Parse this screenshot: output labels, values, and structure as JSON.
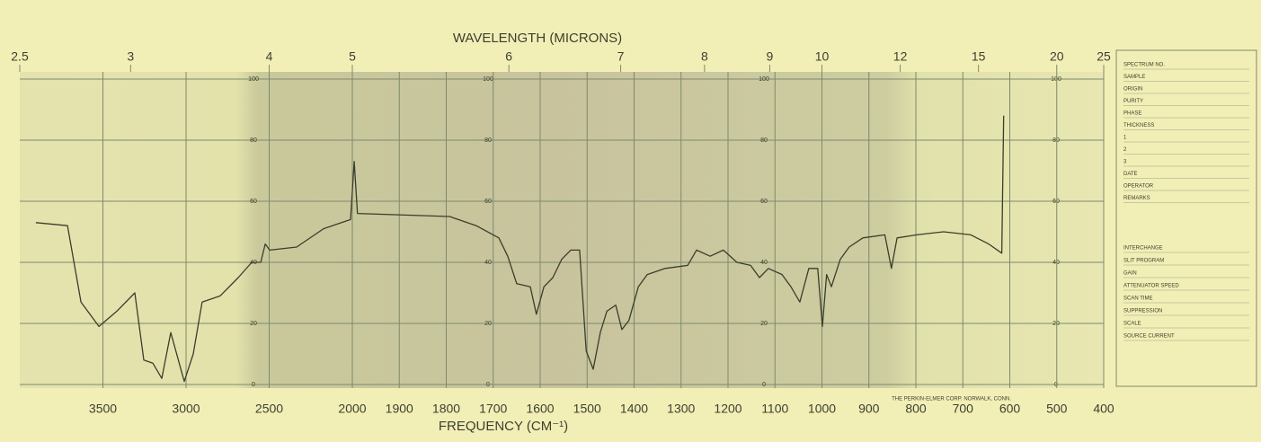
{
  "chart_data": {
    "type": "line",
    "x_top_label": "WAVELENGTH (MICRONS)",
    "x_label": "FREQUENCY (CM⁻¹)",
    "x": [
      3903,
      3713,
      3632,
      3524,
      3416,
      3308,
      3254,
      3200,
      3146,
      3092,
      3011,
      2957,
      2903,
      2795,
      2686,
      2605,
      2551,
      2524,
      2497,
      2335,
      2173,
      2011,
      1996,
      1989,
      1793,
      1736,
      1688,
      1669,
      1650,
      1621,
      1608,
      1592,
      1573,
      1554,
      1535,
      1516,
      1502,
      1487,
      1472,
      1458,
      1439,
      1426,
      1411,
      1391,
      1372,
      1334,
      1286,
      1267,
      1238,
      1210,
      1181,
      1152,
      1133,
      1114,
      1085,
      1066,
      1047,
      1028,
      1009,
      999,
      990,
      980,
      961,
      942,
      913,
      866,
      852,
      840,
      798,
      741,
      683,
      645,
      617,
      613
    ],
    "values": [
      53,
      52,
      27,
      19,
      24,
      30,
      8,
      7,
      2,
      17,
      1,
      10,
      27,
      29,
      35,
      40,
      40,
      46,
      44,
      45,
      51,
      54,
      73,
      56,
      55,
      52,
      48,
      42,
      33,
      32,
      23,
      32,
      35,
      41,
      44,
      44,
      11,
      5,
      17,
      24,
      26,
      18,
      21,
      32,
      36,
      38,
      39,
      44,
      42,
      44,
      40,
      39,
      35,
      38,
      36,
      32,
      27,
      38,
      38,
      19,
      36,
      32,
      41,
      45,
      48,
      49,
      38,
      48,
      49,
      50,
      49,
      46,
      43,
      88
    ],
    "color": "#3b3d2c",
    "xlim": [
      4000,
      400
    ],
    "scale_break": 2000,
    "xticks": [
      3500,
      3000,
      2500,
      2000,
      1900,
      1800,
      1700,
      1600,
      1500,
      1400,
      1300,
      1200,
      1100,
      1000,
      900,
      800,
      700,
      600,
      500,
      400
    ],
    "x_top_ticks": [
      2.5,
      3,
      4,
      5,
      6,
      7,
      8,
      9,
      10,
      12,
      15,
      20,
      25
    ],
    "ylim": [
      0,
      100
    ],
    "yticks": [
      0,
      20,
      40,
      60,
      80,
      100
    ],
    "grid": true
  },
  "footer": {
    "maker": "THE PERKIN-ELMER CORP. NORWALK, CONN."
  },
  "form": {
    "fields": [
      "SPECTRUM NO.",
      "SAMPLE",
      "ORIGIN",
      "PURITY",
      "PHASE",
      "THICKNESS",
      "1",
      "2",
      "3",
      "DATE",
      "OPERATOR",
      "REMARKS",
      "INTERCHANGE",
      "SLIT PROGRAM",
      "GAIN",
      "ATTENUATOR SPEED",
      "SCAN TIME",
      "SUPPRESSION",
      "SCALE",
      "SOURCE CURRENT"
    ]
  }
}
